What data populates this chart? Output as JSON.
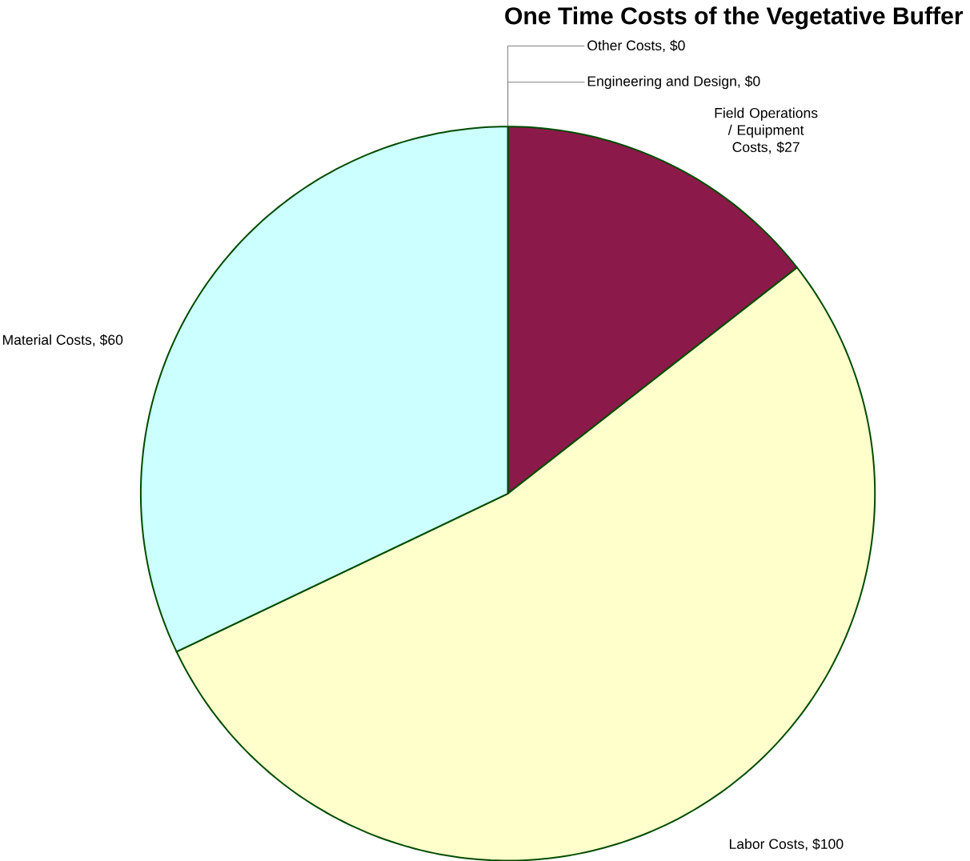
{
  "chart_data": {
    "type": "pie",
    "title": "One Time Costs of the Vegetative Buffer",
    "categories": [
      "Other Costs, $0",
      "Engineering and Design, $0",
      "Field Operations / Equipment Costs, $27",
      "Labor Costs, $100",
      "Material Costs, $60"
    ],
    "values": [
      0,
      0,
      27,
      100,
      60
    ],
    "colors": [
      "#ffffff",
      "#ffffff",
      "#8b1a4a",
      "#ffffcc",
      "#ccffff"
    ]
  }
}
